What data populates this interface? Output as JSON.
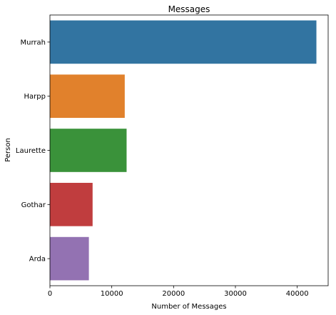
{
  "chart_data": {
    "type": "bar",
    "orientation": "horizontal",
    "title": "Messages",
    "xlabel": "Number of Messages",
    "ylabel": "Person",
    "xlim": [
      0,
      45000
    ],
    "xticks": [
      0,
      10000,
      20000,
      30000,
      40000
    ],
    "xtick_labels": [
      "0",
      "10000",
      "20000",
      "30000",
      "40000"
    ],
    "categories": [
      "Murrah",
      "Harpp",
      "Laurette",
      "Gothar",
      "Arda"
    ],
    "values": [
      43100,
      12100,
      12400,
      6900,
      6300
    ],
    "colors": [
      "#3274a1",
      "#e1812c",
      "#3a923a",
      "#c03d3e",
      "#9372b2"
    ],
    "grid": false,
    "legend": "none"
  }
}
